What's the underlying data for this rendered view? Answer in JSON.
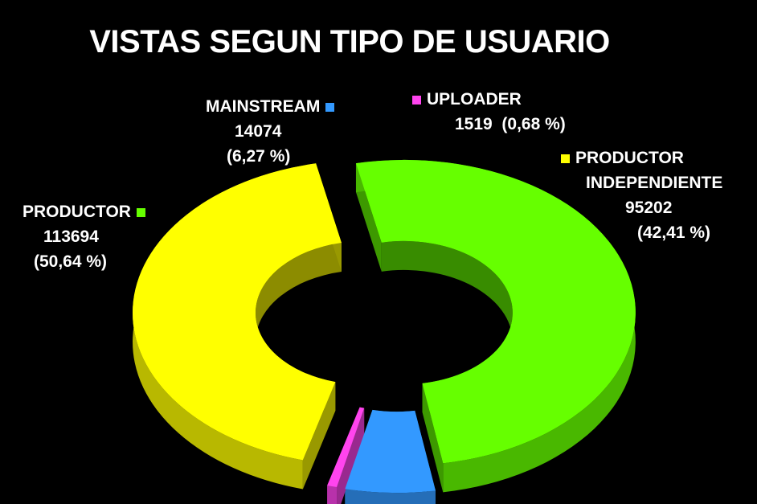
{
  "chart_data": {
    "type": "pie",
    "title": "VISTAS SEGUN TIPO DE USUARIO",
    "style": "3d-exploded-donut",
    "categories": [
      "PRODUCTOR",
      "MAINSTREAM",
      "UPLOADER",
      "PRODUCTOR INDEPENDIENTE"
    ],
    "values": [
      113694,
      14074,
      1519,
      95202
    ],
    "percent_labels": [
      "(50,64 %)",
      "(6,27 %)",
      "(0,68 %)",
      "(42,41 %)"
    ],
    "colors": [
      "#66ff00",
      "#3399ff",
      "#ff44ee",
      "#ffff00"
    ],
    "legend": "labels-beside-slices"
  }
}
